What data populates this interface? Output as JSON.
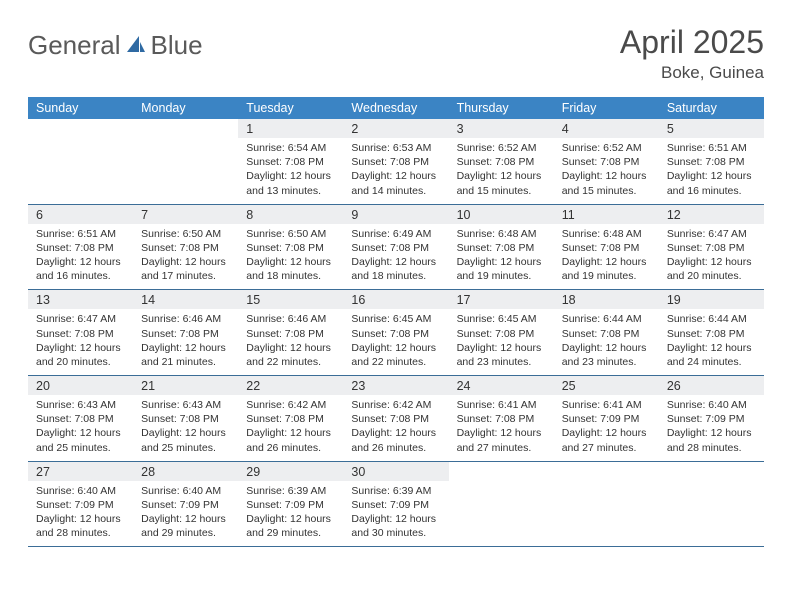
{
  "brand": {
    "word1": "General",
    "word2": "Blue",
    "sail_color": "#2f6aa3"
  },
  "header": {
    "month_year": "April 2025",
    "location": "Boke, Guinea"
  },
  "style": {
    "header_bg": "#3b84c4",
    "header_fg": "#ffffff",
    "daynum_bg": "#edeef0",
    "row_border": "#3b6d97",
    "text_color": "#333333",
    "logo_color": "#5a5a5a"
  },
  "calendar": {
    "day_headers": [
      "Sunday",
      "Monday",
      "Tuesday",
      "Wednesday",
      "Thursday",
      "Friday",
      "Saturday"
    ],
    "weeks": [
      [
        null,
        null,
        {
          "n": "1",
          "sr": "Sunrise: 6:54 AM",
          "ss": "Sunset: 7:08 PM",
          "dl": "Daylight: 12 hours and 13 minutes."
        },
        {
          "n": "2",
          "sr": "Sunrise: 6:53 AM",
          "ss": "Sunset: 7:08 PM",
          "dl": "Daylight: 12 hours and 14 minutes."
        },
        {
          "n": "3",
          "sr": "Sunrise: 6:52 AM",
          "ss": "Sunset: 7:08 PM",
          "dl": "Daylight: 12 hours and 15 minutes."
        },
        {
          "n": "4",
          "sr": "Sunrise: 6:52 AM",
          "ss": "Sunset: 7:08 PM",
          "dl": "Daylight: 12 hours and 15 minutes."
        },
        {
          "n": "5",
          "sr": "Sunrise: 6:51 AM",
          "ss": "Sunset: 7:08 PM",
          "dl": "Daylight: 12 hours and 16 minutes."
        }
      ],
      [
        {
          "n": "6",
          "sr": "Sunrise: 6:51 AM",
          "ss": "Sunset: 7:08 PM",
          "dl": "Daylight: 12 hours and 16 minutes."
        },
        {
          "n": "7",
          "sr": "Sunrise: 6:50 AM",
          "ss": "Sunset: 7:08 PM",
          "dl": "Daylight: 12 hours and 17 minutes."
        },
        {
          "n": "8",
          "sr": "Sunrise: 6:50 AM",
          "ss": "Sunset: 7:08 PM",
          "dl": "Daylight: 12 hours and 18 minutes."
        },
        {
          "n": "9",
          "sr": "Sunrise: 6:49 AM",
          "ss": "Sunset: 7:08 PM",
          "dl": "Daylight: 12 hours and 18 minutes."
        },
        {
          "n": "10",
          "sr": "Sunrise: 6:48 AM",
          "ss": "Sunset: 7:08 PM",
          "dl": "Daylight: 12 hours and 19 minutes."
        },
        {
          "n": "11",
          "sr": "Sunrise: 6:48 AM",
          "ss": "Sunset: 7:08 PM",
          "dl": "Daylight: 12 hours and 19 minutes."
        },
        {
          "n": "12",
          "sr": "Sunrise: 6:47 AM",
          "ss": "Sunset: 7:08 PM",
          "dl": "Daylight: 12 hours and 20 minutes."
        }
      ],
      [
        {
          "n": "13",
          "sr": "Sunrise: 6:47 AM",
          "ss": "Sunset: 7:08 PM",
          "dl": "Daylight: 12 hours and 20 minutes."
        },
        {
          "n": "14",
          "sr": "Sunrise: 6:46 AM",
          "ss": "Sunset: 7:08 PM",
          "dl": "Daylight: 12 hours and 21 minutes."
        },
        {
          "n": "15",
          "sr": "Sunrise: 6:46 AM",
          "ss": "Sunset: 7:08 PM",
          "dl": "Daylight: 12 hours and 22 minutes."
        },
        {
          "n": "16",
          "sr": "Sunrise: 6:45 AM",
          "ss": "Sunset: 7:08 PM",
          "dl": "Daylight: 12 hours and 22 minutes."
        },
        {
          "n": "17",
          "sr": "Sunrise: 6:45 AM",
          "ss": "Sunset: 7:08 PM",
          "dl": "Daylight: 12 hours and 23 minutes."
        },
        {
          "n": "18",
          "sr": "Sunrise: 6:44 AM",
          "ss": "Sunset: 7:08 PM",
          "dl": "Daylight: 12 hours and 23 minutes."
        },
        {
          "n": "19",
          "sr": "Sunrise: 6:44 AM",
          "ss": "Sunset: 7:08 PM",
          "dl": "Daylight: 12 hours and 24 minutes."
        }
      ],
      [
        {
          "n": "20",
          "sr": "Sunrise: 6:43 AM",
          "ss": "Sunset: 7:08 PM",
          "dl": "Daylight: 12 hours and 25 minutes."
        },
        {
          "n": "21",
          "sr": "Sunrise: 6:43 AM",
          "ss": "Sunset: 7:08 PM",
          "dl": "Daylight: 12 hours and 25 minutes."
        },
        {
          "n": "22",
          "sr": "Sunrise: 6:42 AM",
          "ss": "Sunset: 7:08 PM",
          "dl": "Daylight: 12 hours and 26 minutes."
        },
        {
          "n": "23",
          "sr": "Sunrise: 6:42 AM",
          "ss": "Sunset: 7:08 PM",
          "dl": "Daylight: 12 hours and 26 minutes."
        },
        {
          "n": "24",
          "sr": "Sunrise: 6:41 AM",
          "ss": "Sunset: 7:08 PM",
          "dl": "Daylight: 12 hours and 27 minutes."
        },
        {
          "n": "25",
          "sr": "Sunrise: 6:41 AM",
          "ss": "Sunset: 7:09 PM",
          "dl": "Daylight: 12 hours and 27 minutes."
        },
        {
          "n": "26",
          "sr": "Sunrise: 6:40 AM",
          "ss": "Sunset: 7:09 PM",
          "dl": "Daylight: 12 hours and 28 minutes."
        }
      ],
      [
        {
          "n": "27",
          "sr": "Sunrise: 6:40 AM",
          "ss": "Sunset: 7:09 PM",
          "dl": "Daylight: 12 hours and 28 minutes."
        },
        {
          "n": "28",
          "sr": "Sunrise: 6:40 AM",
          "ss": "Sunset: 7:09 PM",
          "dl": "Daylight: 12 hours and 29 minutes."
        },
        {
          "n": "29",
          "sr": "Sunrise: 6:39 AM",
          "ss": "Sunset: 7:09 PM",
          "dl": "Daylight: 12 hours and 29 minutes."
        },
        {
          "n": "30",
          "sr": "Sunrise: 6:39 AM",
          "ss": "Sunset: 7:09 PM",
          "dl": "Daylight: 12 hours and 30 minutes."
        },
        null,
        null,
        null
      ]
    ]
  }
}
